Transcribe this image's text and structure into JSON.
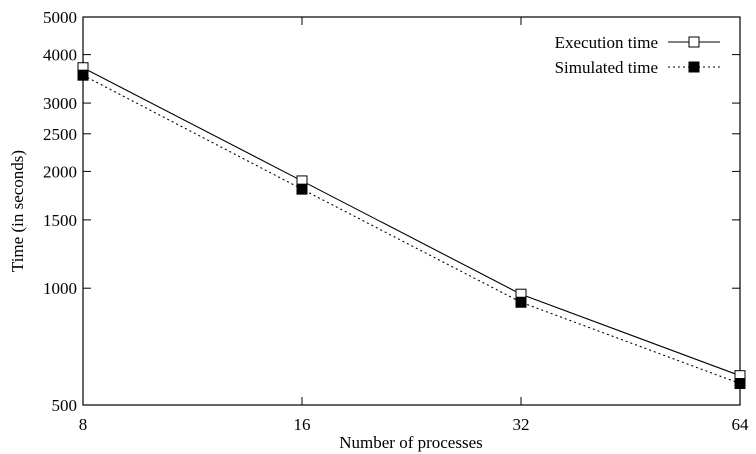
{
  "chart_data": {
    "type": "line",
    "xlabel": "Number of processes",
    "ylabel": "Time (in seconds)",
    "x_scale": "log2",
    "y_scale": "log",
    "xlim": [
      8,
      64
    ],
    "ylim": [
      500,
      5000
    ],
    "x_ticks": [
      "8",
      "16",
      "32",
      "64"
    ],
    "y_ticks": [
      "500",
      "1000",
      "1500",
      "2000",
      "2500",
      "3000",
      "4000",
      "5000"
    ],
    "legend_position": "top-right",
    "grid": false,
    "series": [
      {
        "name": "Execution time",
        "line": "solid",
        "marker": "open-square",
        "x": [
          8,
          16,
          32,
          64
        ],
        "y": [
          3700,
          1890,
          965,
          595
        ]
      },
      {
        "name": "Simulated time",
        "line": "dotted",
        "marker": "filled-square",
        "x": [
          8,
          16,
          32,
          64
        ],
        "y": [
          3540,
          1800,
          920,
          568
        ]
      }
    ]
  }
}
